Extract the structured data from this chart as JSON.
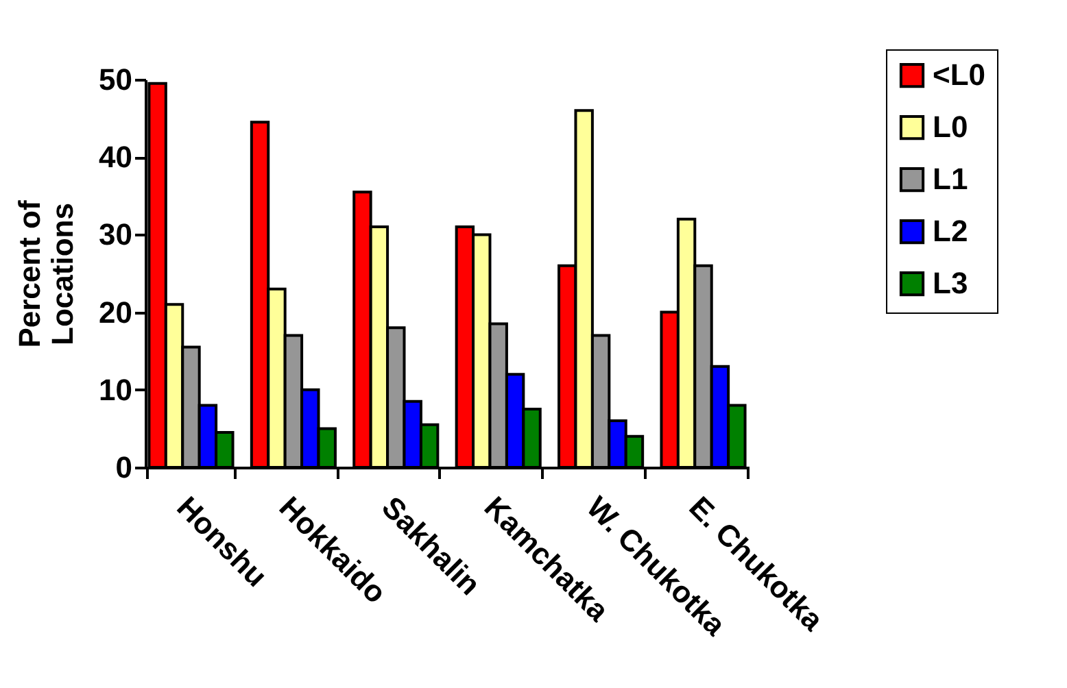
{
  "chart_data": {
    "type": "bar",
    "ylabel": "Percent of\nLocations",
    "categories": [
      "Honshu",
      "Hokkaido",
      "Sakhalin",
      "Kamchatka",
      "W. Chukotka",
      "E. Chukotka"
    ],
    "series": [
      {
        "name": "<L0",
        "color": "#ff0000",
        "values": [
          49.5,
          44.5,
          35.5,
          31,
          26,
          20
        ]
      },
      {
        "name": "L0",
        "color": "#ffff99",
        "values": [
          21,
          23,
          31,
          30,
          46,
          32
        ]
      },
      {
        "name": "L1",
        "color": "#969696",
        "values": [
          15.5,
          17,
          18,
          18.5,
          17,
          26
        ]
      },
      {
        "name": "L2",
        "color": "#0000ff",
        "values": [
          8,
          10,
          8.5,
          12,
          6,
          13
        ]
      },
      {
        "name": "L3",
        "color": "#008000",
        "values": [
          4.5,
          5,
          5.5,
          7.5,
          4,
          8
        ]
      }
    ],
    "ylim": [
      0,
      50
    ],
    "yticks": [
      0,
      10,
      20,
      30,
      40,
      50
    ],
    "grid": false,
    "legend": "top right"
  }
}
